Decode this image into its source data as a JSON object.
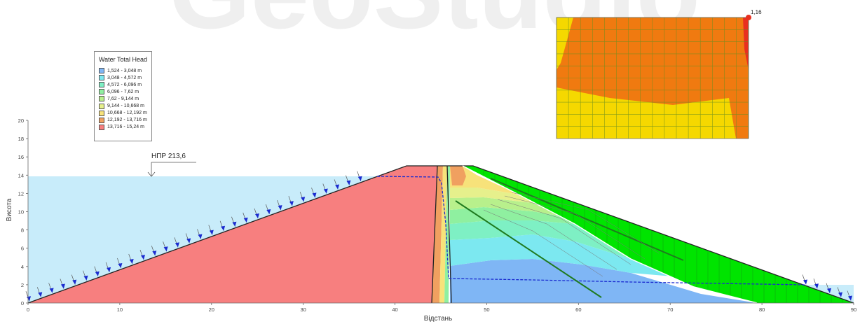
{
  "watermark": "GeoStudio",
  "legend": {
    "title": "Water Total Head",
    "items": [
      {
        "label": "1,524 - 3,048 m",
        "color": "#7fb6f5"
      },
      {
        "label": "3,048 - 4,572 m",
        "color": "#7ce8f0"
      },
      {
        "label": "4,572 - 6,096 m",
        "color": "#7ef0c4"
      },
      {
        "label": "6,096 - 7,62 m",
        "color": "#8ff0a0"
      },
      {
        "label": "7,62 - 9,144 m",
        "color": "#b8f08c"
      },
      {
        "label": "9,144 - 10,668 m",
        "color": "#e6f08c"
      },
      {
        "label": "10,668 - 12,192 m",
        "color": "#f7e27a"
      },
      {
        "label": "12,192 - 13,716 m",
        "color": "#f0a060"
      },
      {
        "label": "13,716 - 15,24 m",
        "color": "#f77f7f"
      }
    ]
  },
  "axes": {
    "xlabel": "Відстань",
    "ylabel": "Висота",
    "xticks": [
      "0",
      "10",
      "20",
      "30",
      "40",
      "50",
      "60",
      "70",
      "80",
      "90"
    ],
    "yticks": [
      "0",
      "2",
      "4",
      "6",
      "8",
      "10",
      "12",
      "14",
      "16",
      "18",
      "20"
    ]
  },
  "annotations": {
    "water_level": "НПР 213,6",
    "inset_value": "1,16"
  },
  "colors": {
    "reservoir": "#c8ecfa",
    "core": "#f77f7f",
    "drain_fill": "#00e400",
    "seepage_line": "#1a2bd0",
    "flow_line": "#1f7a1f",
    "arrows": "#1a2bd0",
    "inset_orange": "#f07a10",
    "inset_yellow": "#f5d800",
    "inset_red": "#e83020"
  }
}
